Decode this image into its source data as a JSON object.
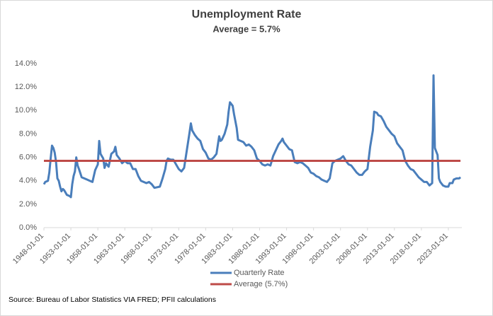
{
  "chart_data": {
    "type": "line",
    "title": "Unemployment Rate",
    "subtitle": "Average = 5.7%",
    "source": "Source: Bureau of Labor Statistics VIA FRED; PFII calculations",
    "xlim": [
      1948,
      2025.5
    ],
    "xticks": [
      {
        "value": 1948,
        "label": "1948-01-01"
      },
      {
        "value": 1953,
        "label": "1953-01-01"
      },
      {
        "value": 1958,
        "label": "1958-01-01"
      },
      {
        "value": 1963,
        "label": "1963-01-01"
      },
      {
        "value": 1968,
        "label": "1968-01-01"
      },
      {
        "value": 1973,
        "label": "1973-01-01"
      },
      {
        "value": 1978,
        "label": "1978-01-01"
      },
      {
        "value": 1983,
        "label": "1983-01-01"
      },
      {
        "value": 1988,
        "label": "1988-01-01"
      },
      {
        "value": 1993,
        "label": "1993-01-01"
      },
      {
        "value": 1998,
        "label": "1998-01-01"
      },
      {
        "value": 2003,
        "label": "2003-01-01"
      },
      {
        "value": 2008,
        "label": "2008-01-01"
      },
      {
        "value": 2013,
        "label": "2013-01-01"
      },
      {
        "value": 2018,
        "label": "2018-01-01"
      },
      {
        "value": 2023,
        "label": "2023-01-01"
      }
    ],
    "ylim": [
      0,
      14
    ],
    "yticks": [
      {
        "value": 0,
        "label": "0.0%"
      },
      {
        "value": 2,
        "label": "2.0%"
      },
      {
        "value": 4,
        "label": "4.0%"
      },
      {
        "value": 6,
        "label": "6.0%"
      },
      {
        "value": 8,
        "label": "8.0%"
      },
      {
        "value": 10,
        "label": "10.0%"
      },
      {
        "value": 12,
        "label": "12.0%"
      },
      {
        "value": 14,
        "label": "14.0%"
      }
    ],
    "series": [
      {
        "name": "Quarterly Rate",
        "color": "#4a7ebb",
        "x": [
          1948.0,
          1948.25,
          1948.75,
          1949.0,
          1949.25,
          1949.5,
          1949.75,
          1950.0,
          1950.25,
          1950.5,
          1950.75,
          1951.0,
          1951.25,
          1951.5,
          1951.75,
          1952.0,
          1952.25,
          1952.75,
          1953.0,
          1953.25,
          1953.5,
          1953.75,
          1954.0,
          1954.25,
          1954.5,
          1955.0,
          1955.5,
          1956.0,
          1956.5,
          1957.0,
          1957.5,
          1958.0,
          1958.25,
          1958.5,
          1959.0,
          1959.25,
          1959.5,
          1960.0,
          1960.5,
          1961.0,
          1961.25,
          1961.5,
          1962.0,
          1962.5,
          1963.0,
          1963.5,
          1964.0,
          1964.5,
          1965.0,
          1965.5,
          1966.0,
          1967.0,
          1967.5,
          1968.0,
          1968.5,
          1969.5,
          1970.0,
          1970.5,
          1970.75,
          1971.0,
          1971.5,
          1972.0,
          1972.5,
          1973.0,
          1973.5,
          1974.0,
          1974.5,
          1975.0,
          1975.25,
          1975.5,
          1976.0,
          1976.5,
          1977.0,
          1977.5,
          1978.0,
          1978.5,
          1979.0,
          1979.5,
          1980.0,
          1980.5,
          1980.75,
          1981.0,
          1981.5,
          1982.0,
          1982.25,
          1982.5,
          1983.0,
          1983.25,
          1983.75,
          1984.0,
          1984.5,
          1985.0,
          1985.5,
          1986.0,
          1986.5,
          1987.0,
          1987.5,
          1988.0,
          1988.5,
          1989.0,
          1989.5,
          1990.0,
          1990.5,
          1991.0,
          1991.5,
          1992.0,
          1992.25,
          1992.5,
          1993.0,
          1993.5,
          1994.0,
          1994.5,
          1995.0,
          1995.5,
          1996.0,
          1996.5,
          1997.0,
          1997.5,
          1998.0,
          1998.5,
          1999.0,
          1999.5,
          2000.0,
          2000.5,
          2001.0,
          2001.5,
          2002.0,
          2002.5,
          2003.0,
          2003.5,
          2004.0,
          2004.5,
          2005.0,
          2005.5,
          2006.0,
          2006.5,
          2007.0,
          2007.5,
          2008.0,
          2008.5,
          2009.0,
          2009.25,
          2009.75,
          2010.0,
          2010.5,
          2011.0,
          2011.5,
          2012.0,
          2012.5,
          2013.0,
          2013.5,
          2014.0,
          2014.5,
          2015.0,
          2015.5,
          2016.0,
          2016.5,
          2017.0,
          2017.5,
          2018.0,
          2018.5,
          2019.0,
          2019.5,
          2020.0,
          2020.25,
          2020.5,
          2021.0,
          2021.25,
          2021.5,
          2022.0,
          2022.5,
          2023.0,
          2023.25,
          2023.75,
          2024.0,
          2024.5,
          2025.0,
          2025.25
        ],
        "values": [
          3.7,
          3.9,
          4.0,
          4.7,
          5.9,
          7.0,
          6.8,
          6.4,
          5.6,
          4.2,
          4.0,
          3.5,
          3.1,
          3.3,
          3.2,
          3.0,
          2.8,
          2.7,
          2.6,
          3.7,
          4.4,
          4.8,
          6.0,
          5.3,
          5.0,
          4.3,
          4.2,
          4.1,
          4.0,
          3.9,
          4.9,
          5.4,
          7.4,
          6.3,
          5.9,
          5.1,
          5.5,
          5.2,
          6.3,
          6.5,
          6.9,
          6.2,
          5.9,
          5.5,
          5.7,
          5.5,
          5.5,
          5.0,
          5.0,
          4.4,
          4.0,
          3.8,
          3.9,
          3.7,
          3.4,
          3.5,
          4.2,
          5.0,
          5.7,
          5.9,
          5.8,
          5.8,
          5.4,
          5.0,
          4.8,
          5.1,
          6.6,
          8.1,
          8.9,
          8.3,
          7.9,
          7.6,
          7.4,
          6.7,
          6.4,
          5.9,
          5.8,
          6.0,
          6.3,
          7.8,
          7.4,
          7.5,
          8.0,
          8.8,
          9.9,
          10.7,
          10.4,
          9.7,
          8.5,
          7.5,
          7.4,
          7.3,
          7.0,
          7.1,
          6.9,
          6.6,
          5.9,
          5.7,
          5.4,
          5.3,
          5.4,
          5.3,
          6.1,
          6.6,
          7.1,
          7.4,
          7.6,
          7.3,
          7.0,
          6.7,
          6.6,
          5.6,
          5.5,
          5.6,
          5.5,
          5.3,
          5.1,
          4.7,
          4.6,
          4.4,
          4.3,
          4.1,
          4.0,
          3.9,
          4.2,
          5.5,
          5.7,
          5.8,
          5.9,
          6.1,
          5.7,
          5.4,
          5.3,
          5.0,
          4.7,
          4.5,
          4.5,
          4.8,
          5.0,
          6.9,
          8.3,
          9.9,
          9.8,
          9.6,
          9.5,
          9.1,
          8.6,
          8.3,
          8.0,
          7.8,
          7.2,
          6.9,
          6.6,
          5.7,
          5.3,
          5.0,
          4.9,
          4.6,
          4.3,
          4.1,
          3.9,
          3.9,
          3.6,
          3.8,
          13.0,
          6.8,
          6.2,
          4.2,
          3.9,
          3.6,
          3.5,
          3.5,
          3.8,
          3.8,
          4.1,
          4.2,
          4.2,
          4.3
        ]
      },
      {
        "name": "Average (5.7%)",
        "color": "#be4b48",
        "x": [
          1948.0,
          2025.25
        ],
        "values": [
          5.7,
          5.7
        ]
      }
    ]
  }
}
